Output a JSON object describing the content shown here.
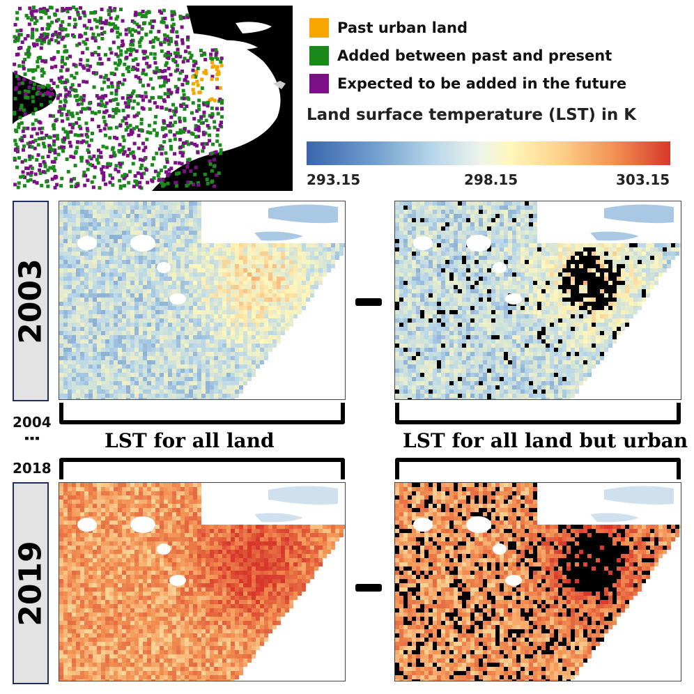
{
  "legend": {
    "items": [
      {
        "label": "Past urban land",
        "color": "#f7a600"
      },
      {
        "label": "Added between past and present",
        "color": "#1a8a1a"
      },
      {
        "label": "Expected to be added in the future",
        "color": "#7b0f86"
      }
    ]
  },
  "colorbar": {
    "title": "Land surface temperature (LST) in K",
    "min": "293.15",
    "mid": "298.15",
    "max": "303.15",
    "colors": [
      "#3a66ae",
      "#b8d7ea",
      "#fff7bb",
      "#f39354",
      "#d7382b"
    ]
  },
  "years": {
    "first": "2003",
    "between_start": "2004",
    "ellipsis": "⋮",
    "between_end": "2018",
    "last": "2019"
  },
  "operator": "-",
  "captions": {
    "left": "LST for all land",
    "right": "LST for all land but urban"
  },
  "maps": {
    "lst_2003_mean_fraction": 0.3,
    "lst_2019_mean_fraction": 0.72
  }
}
